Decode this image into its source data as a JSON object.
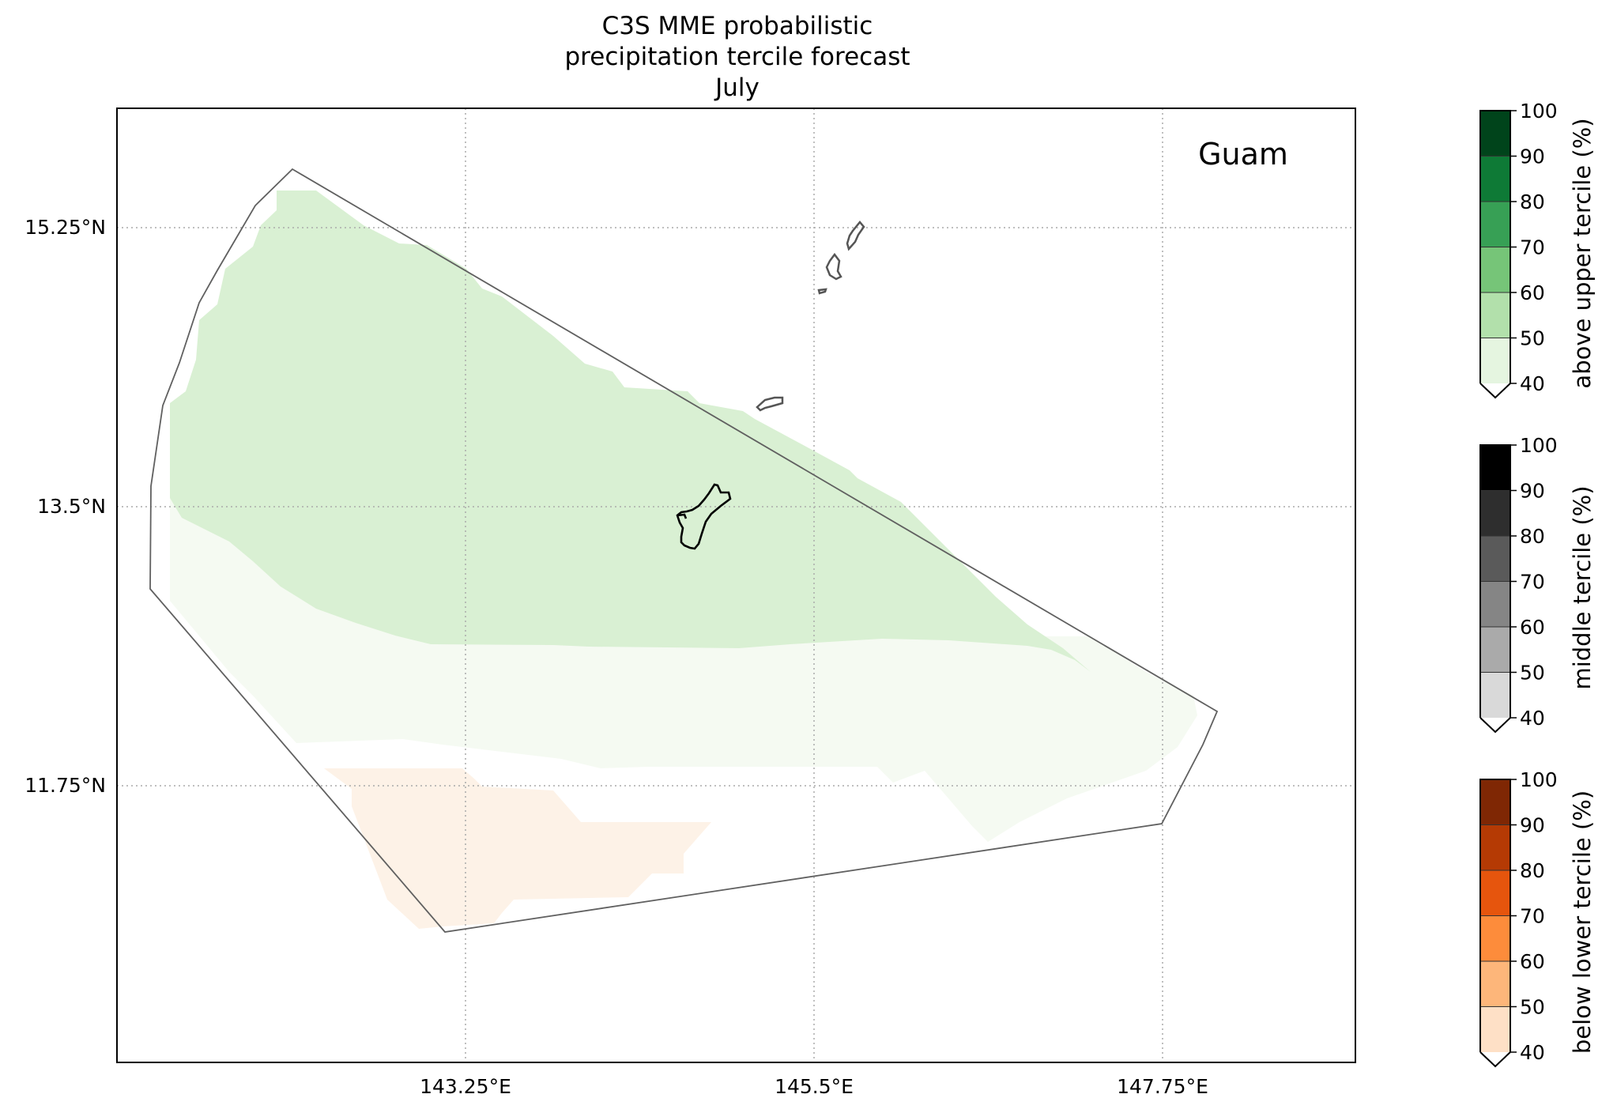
{
  "title": {
    "line1": "C3S MME probabilistic",
    "line2": "precipitation tercile forecast",
    "line3": "July"
  },
  "map": {
    "region_label": "Guam",
    "lat_labels": [
      "15.25°N",
      "13.5°N",
      "11.75°N"
    ],
    "lon_labels": [
      "143.25°E",
      "145.5°E",
      "147.75°E"
    ],
    "gridlines": "dotted",
    "colors": {
      "region_outline": "#606060",
      "gridline": "#aaaaaa",
      "above_40_50": "#d9f0d3",
      "middle_40_50": "#f5faf2",
      "below_40_50": "#fdf2e7",
      "coastline_guam": "#000000",
      "coastline_other": "#555555"
    }
  },
  "colorbars": [
    {
      "label": "above upper tercile (%)",
      "ticks": [
        "100",
        "90",
        "80",
        "70",
        "60",
        "50",
        "40"
      ],
      "colors": [
        "#e5f5e0",
        "#b2e0ab",
        "#76c578",
        "#37a055",
        "#0e7a36",
        "#00441b"
      ]
    },
    {
      "label": "middle tercile (%)",
      "ticks": [
        "100",
        "90",
        "80",
        "70",
        "60",
        "50",
        "40"
      ],
      "colors": [
        "#d9d9d9",
        "#aaaaaa",
        "#858585",
        "#5a5a5a",
        "#2e2e2e",
        "#000000"
      ]
    },
    {
      "label": "below lower tercile (%)",
      "ticks": [
        "100",
        "90",
        "80",
        "70",
        "60",
        "50",
        "40"
      ],
      "colors": [
        "#fee0c6",
        "#fdb67a",
        "#fd8c3b",
        "#e6550d",
        "#b53a04",
        "#7f2704"
      ]
    }
  ]
}
